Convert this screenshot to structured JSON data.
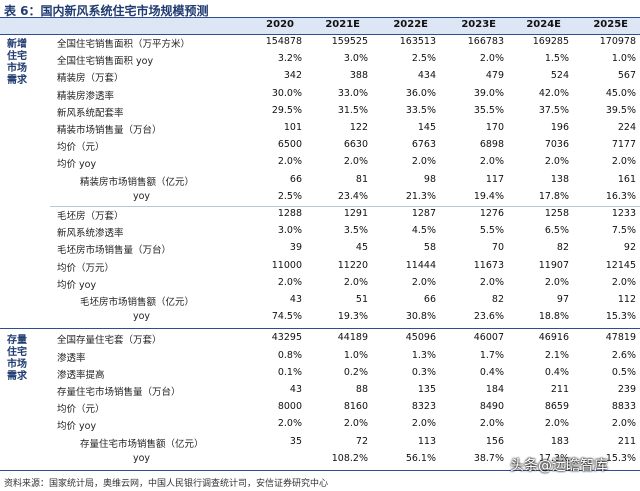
{
  "title": "表 6：国内新风系统住宅市场规模预测",
  "columns": [
    "2020",
    "2021E",
    "2022E",
    "2023E",
    "2024E",
    "2025E"
  ],
  "groups": [
    {
      "label": "新增住宅市场需求",
      "rows": [
        {
          "label": "全国住宅销售面积（万平方米）",
          "values": [
            "154878",
            "159525",
            "163513",
            "166783",
            "169285",
            "170978"
          ]
        },
        {
          "label": "全国住宅销售面积 yoy",
          "values": [
            "3.2%",
            "3.0%",
            "2.5%",
            "2.0%",
            "1.5%",
            "1.0%"
          ]
        },
        {
          "label": "精装房（万套）",
          "values": [
            "342",
            "388",
            "434",
            "479",
            "524",
            "567"
          ]
        },
        {
          "label": "精装房渗透率",
          "values": [
            "30.0%",
            "33.0%",
            "36.0%",
            "39.0%",
            "42.0%",
            "45.0%"
          ]
        },
        {
          "label": "新风系统配套率",
          "values": [
            "29.5%",
            "31.5%",
            "33.5%",
            "35.5%",
            "37.5%",
            "39.5%"
          ]
        },
        {
          "label": "精装市场销售量（万台）",
          "values": [
            "101",
            "122",
            "145",
            "170",
            "196",
            "224"
          ]
        },
        {
          "label": "均价（元）",
          "values": [
            "6500",
            "6630",
            "6763",
            "6898",
            "7036",
            "7177"
          ]
        },
        {
          "label": "均价 yoy",
          "values": [
            "2.0%",
            "2.0%",
            "2.0%",
            "2.0%",
            "2.0%",
            "2.0%"
          ]
        },
        {
          "label": "精装房市场销售额（亿元）",
          "values": [
            "66",
            "81",
            "98",
            "117",
            "138",
            "161"
          ]
        },
        {
          "label": "yoy",
          "values": [
            "2.5%",
            "23.4%",
            "21.3%",
            "19.4%",
            "17.8%",
            "16.3%"
          ]
        },
        {
          "label": "毛坯房（万套）",
          "values": [
            "1288",
            "1291",
            "1287",
            "1276",
            "1258",
            "1233"
          ]
        },
        {
          "label": "新风系统渗透率",
          "values": [
            "3.0%",
            "3.5%",
            "4.5%",
            "5.5%",
            "6.5%",
            "7.5%"
          ]
        },
        {
          "label": "毛坯房市场销售量（万台）",
          "values": [
            "39",
            "45",
            "58",
            "70",
            "82",
            "92"
          ]
        },
        {
          "label": "均价（万元）",
          "values": [
            "11000",
            "11220",
            "11444",
            "11673",
            "11907",
            "12145"
          ]
        },
        {
          "label": "均价 yoy",
          "values": [
            "2.0%",
            "2.0%",
            "2.0%",
            "2.0%",
            "2.0%",
            "2.0%"
          ]
        },
        {
          "label": "毛坯房市场销售额（亿元）",
          "values": [
            "43",
            "51",
            "66",
            "82",
            "97",
            "112"
          ]
        },
        {
          "label": "yoy",
          "values": [
            "74.5%",
            "19.3%",
            "30.8%",
            "23.6%",
            "18.8%",
            "15.3%"
          ]
        }
      ]
    },
    {
      "label": "存量住宅市场需求",
      "rows": [
        {
          "label": "全国存量住宅套（万套）",
          "values": [
            "43295",
            "44189",
            "45096",
            "46007",
            "46916",
            "47819"
          ]
        },
        {
          "label": "渗透率",
          "values": [
            "0.8%",
            "1.0%",
            "1.3%",
            "1.7%",
            "2.1%",
            "2.6%"
          ]
        },
        {
          "label": "渗透率提高",
          "values": [
            "0.1%",
            "0.2%",
            "0.3%",
            "0.4%",
            "0.4%",
            "0.5%"
          ]
        },
        {
          "label": "存量住宅市场销售量（万台）",
          "values": [
            "43",
            "88",
            "135",
            "184",
            "211",
            "239"
          ]
        },
        {
          "label": "均价（元）",
          "values": [
            "8000",
            "8160",
            "8323",
            "8490",
            "8659",
            "8833"
          ]
        },
        {
          "label": "均价 yoy",
          "values": [
            "2.0%",
            "2.0%",
            "2.0%",
            "2.0%",
            "2.0%",
            "2.0%"
          ]
        },
        {
          "label": "存量住宅市场销售额（亿元）",
          "values": [
            "35",
            "72",
            "113",
            "156",
            "183",
            "211"
          ]
        },
        {
          "label": "yoy",
          "values": [
            null,
            "108.2%",
            "56.1%",
            "38.7%",
            "17.3%",
            "15.3%"
          ]
        }
      ]
    }
  ],
  "footer": "资料来源：国家统计局，奥维云网，中国人民银行调查统计司，安信证券研究中心",
  "watermark": "头条@远瞻智库"
}
